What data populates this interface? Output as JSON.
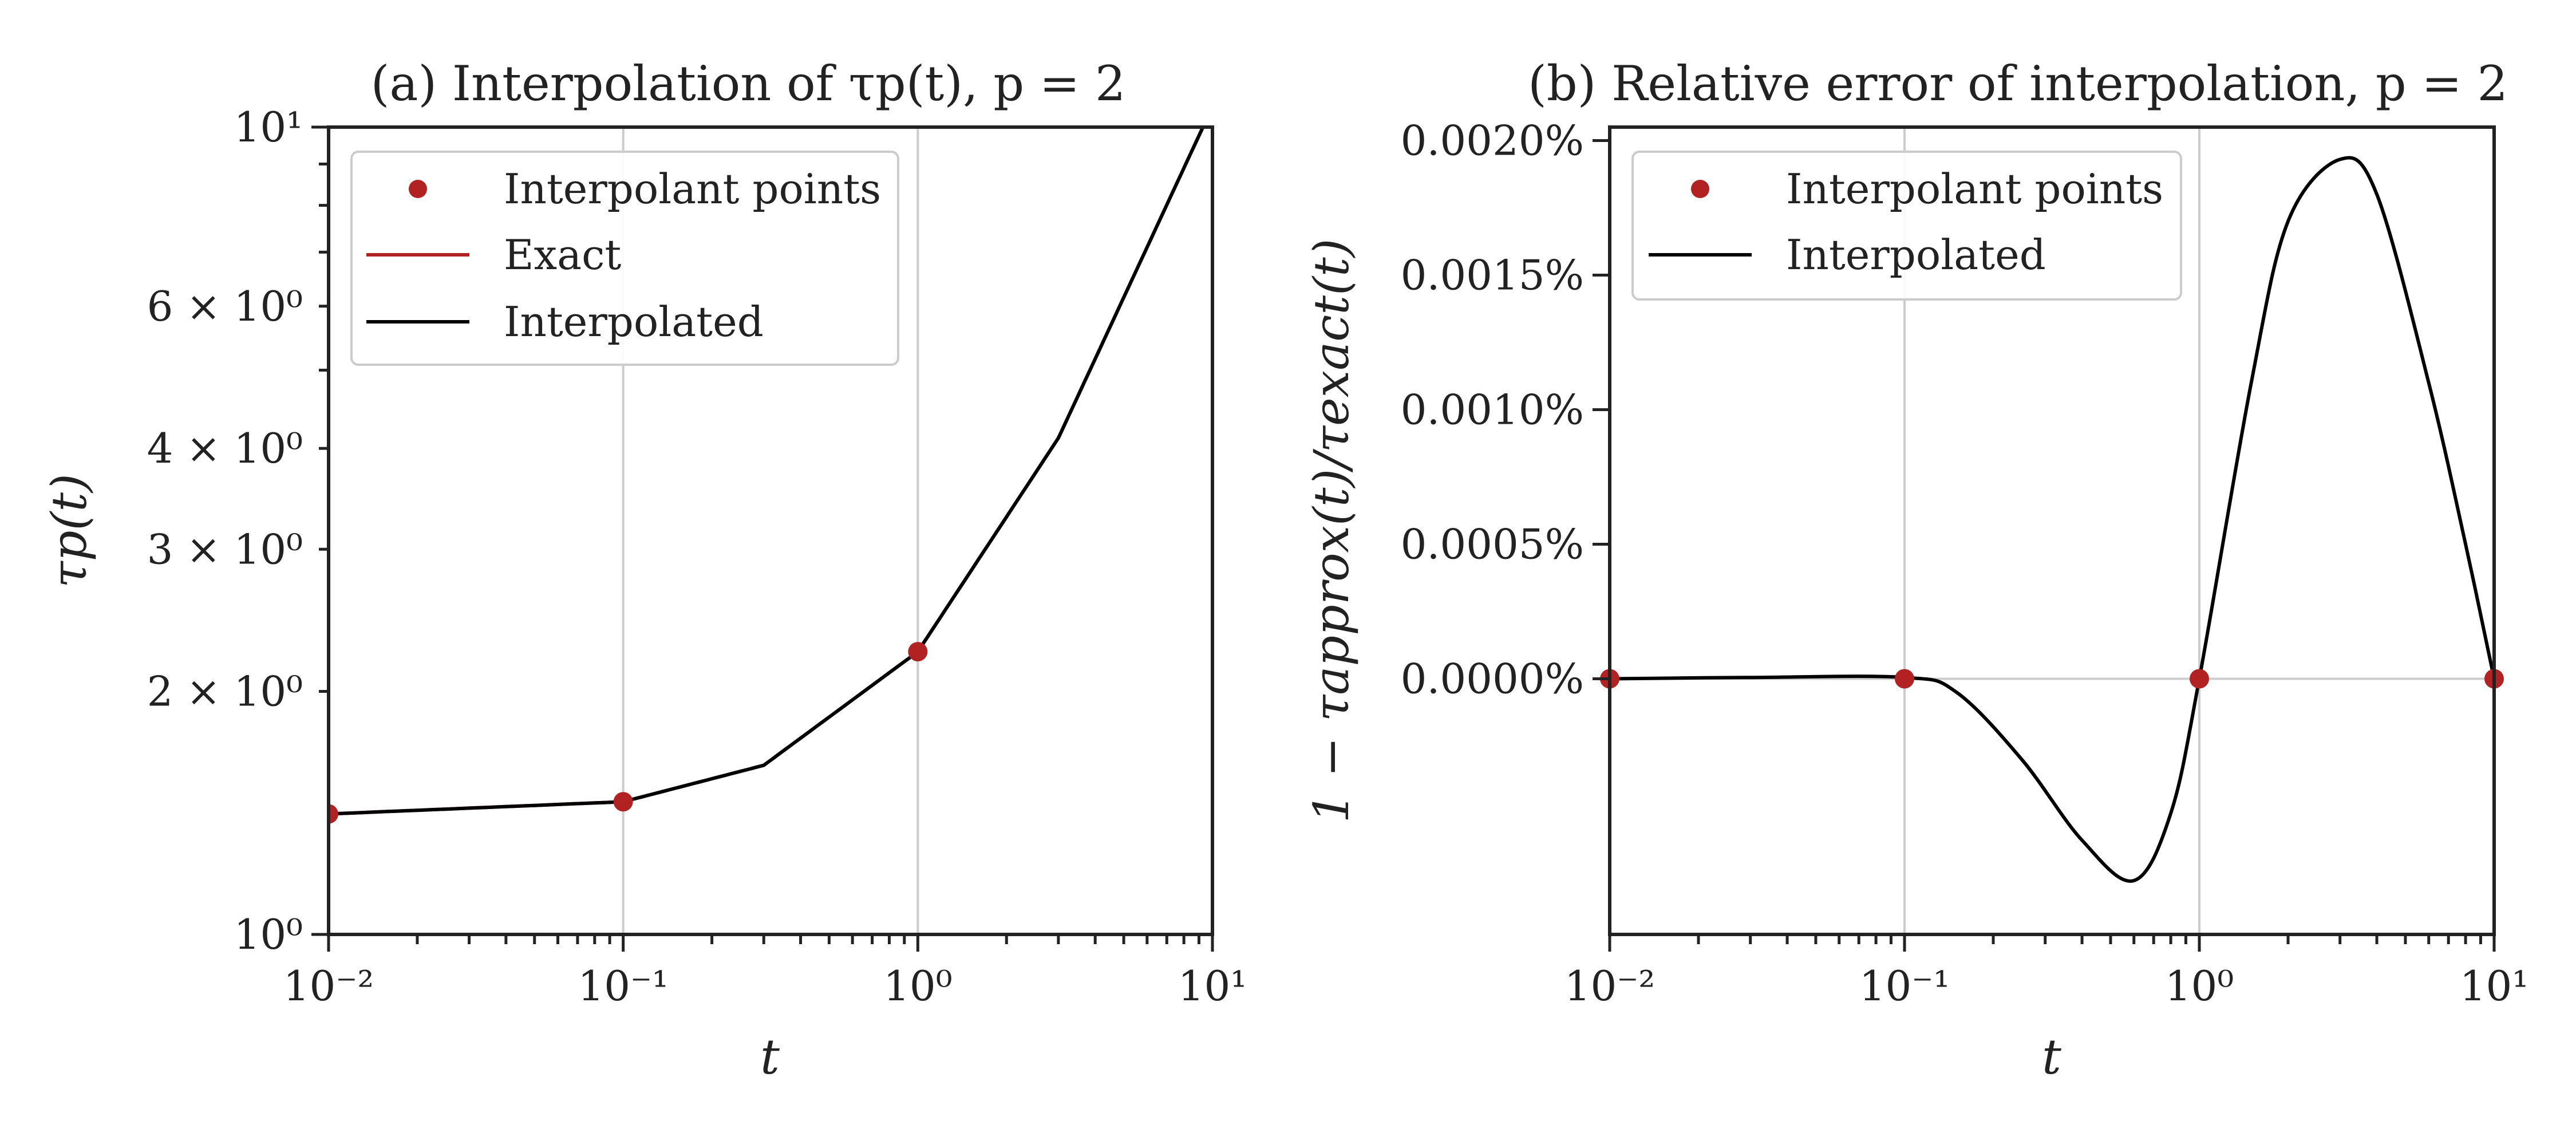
{
  "colors": {
    "points": "#b22222",
    "exact": "#b22222",
    "interp": "#000000",
    "grid": "#cccccc",
    "axis": "#222222"
  },
  "chart_data": [
    {
      "type": "line",
      "title": "(a) Interpolation of τp(t), p = 2",
      "xlabel": "t",
      "ylabel": "τp(t)",
      "xscale": "log",
      "yscale": "log",
      "xlim": [
        0.01,
        10
      ],
      "ylim": [
        1,
        10
      ],
      "grid": "x-major",
      "legend_loc": "upper-left",
      "x_tick_labels": [
        "10⁻²",
        "10⁻¹",
        "10⁰",
        "10¹"
      ],
      "y_tick_labels": [
        {
          "v": 1,
          "label": "10⁰"
        },
        {
          "v": 2,
          "label": "2 × 10⁰"
        },
        {
          "v": 3,
          "label": "3 × 10⁰"
        },
        {
          "v": 4,
          "label": "4 × 10⁰"
        },
        {
          "v": 6,
          "label": "6 × 10⁰"
        },
        {
          "v": 10,
          "label": "10¹"
        }
      ],
      "series": [
        {
          "name": "Interpolant points",
          "kind": "scatter",
          "x": [
            0.01,
            0.1,
            1
          ],
          "y": [
            1.41,
            1.46,
            2.24
          ]
        },
        {
          "name": "Exact",
          "kind": "line",
          "x": [
            0.01,
            0.1,
            0.3,
            1,
            3,
            10
          ],
          "y": [
            1.41,
            1.46,
            1.62,
            2.24,
            4.12,
            10.6
          ]
        },
        {
          "name": "Interpolated",
          "kind": "line",
          "x": [
            0.01,
            0.1,
            0.3,
            1,
            3,
            10
          ],
          "y": [
            1.41,
            1.46,
            1.62,
            2.24,
            4.12,
            10.6
          ]
        }
      ]
    },
    {
      "type": "line",
      "title": "(b) Relative error of interpolation, p = 2",
      "xlabel": "t",
      "ylabel": "1 − τapprox(t)/τexact(t)",
      "xscale": "log",
      "yscale": "linear",
      "xlim": [
        0.01,
        10
      ],
      "ylim": [
        -0.00095,
        0.00205
      ],
      "grid": "x-major, y=0",
      "legend_loc": "upper-left",
      "x_tick_labels": [
        "10⁻²",
        "10⁻¹",
        "10⁰",
        "10¹"
      ],
      "y_tick_labels": [
        {
          "v": 0.0,
          "label": "0.0000%"
        },
        {
          "v": 0.0005,
          "label": "0.0005%"
        },
        {
          "v": 0.001,
          "label": "0.0010%"
        },
        {
          "v": 0.0015,
          "label": "0.0015%"
        },
        {
          "v": 0.002,
          "label": "0.0020%"
        }
      ],
      "series": [
        {
          "name": "Interpolant points",
          "kind": "scatter",
          "x": [
            0.01,
            0.1,
            1,
            10
          ],
          "y": [
            0,
            0,
            0,
            0
          ]
        },
        {
          "name": "Interpolated",
          "kind": "line",
          "x": [
            0.01,
            0.03,
            0.1,
            0.15,
            0.25,
            0.4,
            0.6,
            0.8,
            1,
            1.5,
            2,
            3,
            4,
            6,
            8,
            10
          ],
          "y": [
            0,
            5e-06,
            5e-06,
            -5e-05,
            -0.0003,
            -0.0006,
            -0.00075,
            -0.0005,
            0,
            0.0011,
            0.0017,
            0.00193,
            0.0018,
            0.0011,
            0.0005,
            0
          ]
        }
      ]
    }
  ]
}
